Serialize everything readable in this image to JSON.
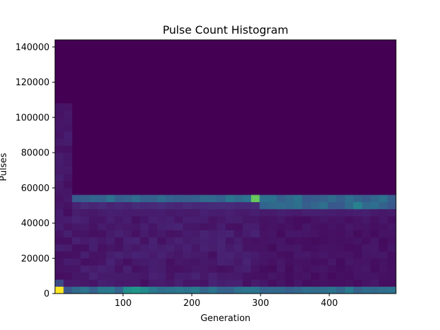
{
  "chart_data": {
    "type": "heatmap",
    "title": "Pulse Count Histogram",
    "xlabel": "Generation",
    "ylabel": "Pulses",
    "xlim": [
      1,
      497
    ],
    "ylim": [
      0,
      144000
    ],
    "x_ticks": [
      100,
      200,
      300,
      400
    ],
    "y_ticks": [
      0,
      20000,
      40000,
      60000,
      80000,
      100000,
      120000,
      140000
    ],
    "y_tick_labels": [
      "0",
      "20000",
      "40000",
      "60000",
      "80000",
      "100000",
      "120000",
      "140000"
    ],
    "x_tick_labels": [
      "100",
      "200",
      "300",
      "400"
    ],
    "colormap": "viridis",
    "bins_x": 40,
    "bins_y": 36,
    "bin_width_y": 4000,
    "cells": [
      {
        "x_bin": 0,
        "y_bin": 0,
        "value": 1.0
      },
      {
        "x_bin": 0,
        "y_bin": 1,
        "value": 0.28
      },
      {
        "x_bin": 1,
        "y_bin": 0,
        "value": 0.35
      },
      {
        "x_bin": 8,
        "y_bin": 0,
        "value": 0.62
      },
      {
        "x_bin": 9,
        "y_bin": 0,
        "value": 0.66
      },
      {
        "x_bin": 10,
        "y_bin": 0,
        "value": 0.6
      },
      {
        "x_bin": 23,
        "y_bin": 13,
        "value": 0.85
      },
      {
        "x_bin": 35,
        "y_bin": 12,
        "value": 0.55
      }
    ],
    "bands": [
      {
        "y_bin": 0,
        "x_from": 2,
        "x_to": 39,
        "level": 0.45
      },
      {
        "y_bin": 13,
        "x_from": 2,
        "x_to": 39,
        "level": 0.42
      },
      {
        "y_bin": 12,
        "x_from": 24,
        "x_to": 39,
        "level": 0.4
      },
      {
        "y_bin": 12,
        "x_from": 2,
        "x_to": 23,
        "level": 0.14
      },
      {
        "y_bin": 11,
        "x_from": 2,
        "x_to": 39,
        "level": 0.1
      }
    ],
    "regions": [
      {
        "y_from": 1,
        "y_to": 10,
        "x_from": 2,
        "x_to": 23,
        "level": 0.09
      },
      {
        "y_from": 1,
        "y_to": 10,
        "x_from": 24,
        "x_to": 39,
        "level": 0.06
      },
      {
        "y_from": 1,
        "y_to": 26,
        "x_from": 0,
        "x_to": 1,
        "level": 0.08
      }
    ]
  }
}
